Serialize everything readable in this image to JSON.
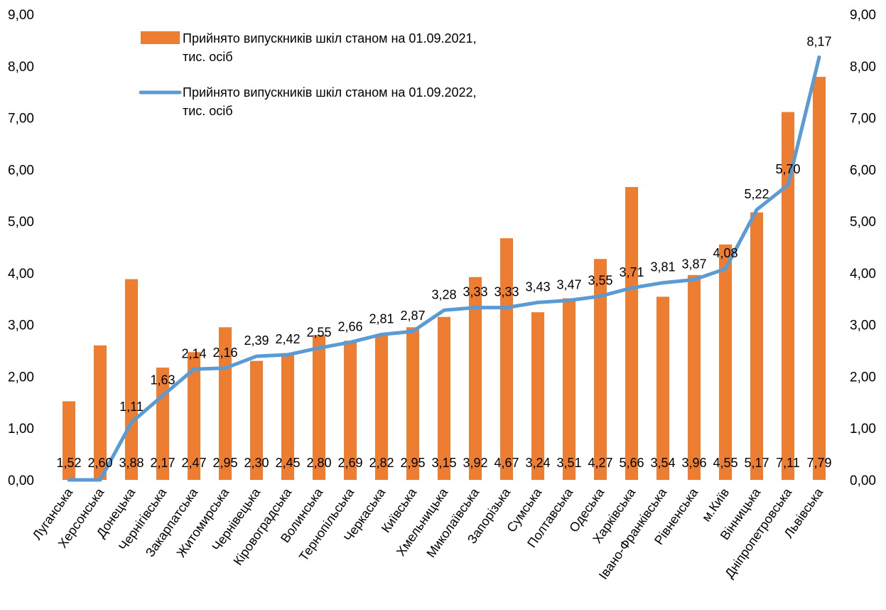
{
  "chart_data": {
    "type": "bar",
    "categories": [
      "Луганська",
      "Херсонська",
      "Донецька",
      "Чернігівська",
      "Закарпатська",
      "Житомирська",
      "Чернівецька",
      "Кіровоградська",
      "Волинська",
      "Тернопільська",
      "Черкаська",
      "Київська",
      "Хмельницька",
      "Миколаївська",
      "Запорізька",
      "Сумська",
      "Полтавська",
      "Одеська",
      "Харківська",
      "Івано-Франківська",
      "Рівненська",
      "м.Київ",
      "Вінницька",
      "Дніпропетровська",
      "Львівська"
    ],
    "series": [
      {
        "name": "Прийнято випускників шкіл станом на 01.09.2021, тис. осіб",
        "kind": "bar",
        "color": "#ED7D31",
        "values": [
          1.52,
          2.6,
          3.88,
          2.17,
          2.47,
          2.95,
          2.3,
          2.45,
          2.8,
          2.69,
          2.82,
          2.95,
          3.15,
          3.92,
          4.67,
          3.24,
          3.51,
          4.27,
          5.66,
          3.54,
          3.96,
          4.55,
          5.17,
          7.11,
          7.79
        ],
        "labels": [
          "1,52",
          "2,60",
          "3,88",
          "2,17",
          "2,47",
          "2,95",
          "2,30",
          "2,45",
          "2,80",
          "2,69",
          "2,82",
          "2,95",
          "3,15",
          "3,92",
          "4,67",
          "3,24",
          "3,51",
          "4,27",
          "5,66",
          "3,54",
          "3,96",
          "4,55",
          "5,17",
          "7,11",
          "7,79"
        ]
      },
      {
        "name": "Прийнято випускників шкіл станом на 01.09.2022, тис. осіб",
        "kind": "line",
        "color": "#5B9BD5",
        "values": [
          0,
          0,
          1.11,
          1.63,
          2.14,
          2.16,
          2.39,
          2.42,
          2.55,
          2.66,
          2.81,
          2.87,
          3.28,
          3.33,
          3.33,
          3.43,
          3.47,
          3.55,
          3.71,
          3.81,
          3.87,
          4.08,
          5.22,
          5.7,
          8.17
        ],
        "labels": [
          "",
          "",
          "1,11",
          "1,63",
          "2,14",
          "2,16",
          "2,39",
          "2,42",
          "2,55",
          "2,66",
          "2,81",
          "2,87",
          "3,28",
          "3,33",
          "3,33",
          "3,43",
          "3,47",
          "3,55",
          "3,71",
          "3,81",
          "3,87",
          "4,08",
          "5,22",
          "5,70",
          "8,17"
        ]
      }
    ],
    "ylim": [
      0,
      9
    ],
    "yticks": [
      "0,00",
      "1,00",
      "2,00",
      "3,00",
      "4,00",
      "5,00",
      "6,00",
      "7,00",
      "8,00",
      "9,00"
    ],
    "ytick_values": [
      0,
      1,
      2,
      3,
      4,
      5,
      6,
      7,
      8,
      9
    ],
    "secondary_axis": true,
    "grid": false,
    "legend_position": "top-left",
    "legend": [
      {
        "lines": [
          "Прийнято випускників шкіл станом на 01.09.2021,",
          "тис. осіб"
        ]
      },
      {
        "lines": [
          "Прийнято випускників шкіл станом на 01.09.2022,",
          "тис. осіб"
        ]
      }
    ]
  }
}
